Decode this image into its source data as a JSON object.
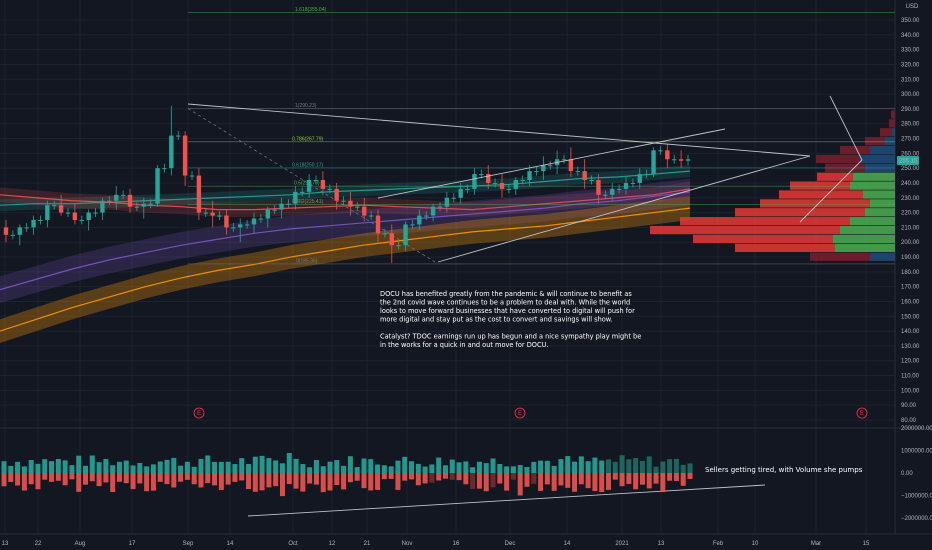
{
  "price_axis": {
    "currency": "USD",
    "ticks": [
      80,
      90,
      100,
      110,
      120,
      130,
      140,
      150,
      160,
      170,
      180,
      190,
      200,
      210,
      220,
      230,
      240,
      250,
      260,
      270,
      280,
      290,
      300,
      310,
      320,
      330,
      340,
      350
    ],
    "tick_labels": [
      "80.00",
      "90.00",
      "100.00",
      "110.00",
      "120.00",
      "130.00",
      "140.00",
      "150.00",
      "160.00",
      "170.00",
      "180.00",
      "190.00",
      "200.00",
      "210.00",
      "220.00",
      "230.00",
      "240.00",
      "250.00",
      "260.00",
      "270.00",
      "280.00",
      "290.00",
      "300.00",
      "310.00",
      "320.00",
      "330.00",
      "340.00",
      "350.00"
    ],
    "last_price": "255.15"
  },
  "volume_axis": {
    "ticks": [
      2000000,
      1000000,
      0,
      -1000000,
      -2000000
    ],
    "tick_labels": [
      "2000000.00",
      "1000000.00",
      "0.00",
      "−1000000.00",
      "−2000000.00"
    ]
  },
  "time_axis": {
    "labels": [
      "13",
      "22",
      "Aug",
      "17",
      "Sep",
      "14",
      "Oct",
      "12",
      "21",
      "Nov",
      "16",
      "Dec",
      "14",
      "2021",
      "13",
      "Feb",
      "10",
      "Mar",
      "15"
    ]
  },
  "fib_levels": [
    {
      "label": "1.618(355.04)",
      "price": 355.04,
      "color": "#4caf50"
    },
    {
      "label": "1(290.23)",
      "price": 290.23,
      "color": "#787b86"
    },
    {
      "label": "0.786(267.79)",
      "price": 267.79,
      "color": "#8bc34a"
    },
    {
      "label": "0.618(250.17)",
      "price": 250.17,
      "color": "#26a69a"
    },
    {
      "label": "0.5(237.79)",
      "price": 237.79,
      "color": "#4caf50"
    },
    {
      "label": "0.382(225.41)",
      "price": 225.41,
      "color": "#4caf50"
    },
    {
      "label": "0(185.36)",
      "price": 185.36,
      "color": "#787b86"
    }
  ],
  "earnings_badge": "E",
  "notes": {
    "main": [
      "DOCU has benefited greatly from the pandemic & will continue to benefit as",
      "the 2nd covid wave continues to be a problem to deal with. While the world",
      "looks to move forward businesses that have converted to digital will push for",
      "more digital and stay put as the cost to convert and savings will show.",
      "",
      "Catalyst? TDOC earnings run up has begun and a nice sympathy play might be",
      "in the works for a quick in and out move for DOCU."
    ],
    "volume": "Sellers getting tired, with Volume she pumps"
  },
  "colors": {
    "background": "#131722",
    "up": "#26a69a",
    "down": "#ef5350",
    "grid": "#1e222d",
    "trend": "#d1d4dc",
    "vp_up": "#4caf50",
    "vp_down": "#e53935",
    "vp_up_va": "#1e4d7a",
    "vp_down_va": "#7a1f2c"
  },
  "chart_data": {
    "type": "candlestick",
    "symbol_currency": "USD",
    "price_range": [
      75,
      360
    ],
    "volume_range": [
      -2300000,
      2300000
    ],
    "moving_average_ribbons": [
      {
        "name": "",
        "color": "#26a69a",
        "values": [
          225,
          226,
          226,
          227,
          228,
          229,
          230,
          231,
          232,
          234,
          235,
          236,
          237,
          238,
          239,
          241,
          243,
          244,
          246,
          248
        ]
      },
      {
        "name": "",
        "color": "#ef5350",
        "values": [
          232,
          230,
          228,
          227,
          225,
          224,
          222,
          222,
          223,
          224,
          225,
          224,
          223,
          222,
          224,
          226,
          228,
          230,
          232,
          236
        ]
      },
      {
        "name": "",
        "color": "#7e57c2",
        "values": [
          168,
          175,
          182,
          188,
          193,
          198,
          202,
          206,
          209,
          211,
          213,
          215,
          217,
          219,
          221,
          223,
          226,
          228,
          231,
          234
        ]
      },
      {
        "name": "",
        "color": "#ff9800",
        "values": [
          140,
          148,
          156,
          163,
          170,
          176,
          181,
          185,
          190,
          194,
          198,
          201,
          204,
          207,
          209,
          211,
          214,
          217,
          220,
          223
        ]
      }
    ],
    "candles_ohlc_approx": [
      [
        210,
        215,
        200,
        205
      ],
      [
        205,
        212,
        198,
        210
      ],
      [
        210,
        218,
        205,
        215
      ],
      [
        215,
        228,
        210,
        225
      ],
      [
        225,
        232,
        218,
        220
      ],
      [
        220,
        226,
        212,
        215
      ],
      [
        215,
        222,
        208,
        220
      ],
      [
        220,
        230,
        215,
        228
      ],
      [
        228,
        238,
        222,
        232
      ],
      [
        232,
        236,
        220,
        224
      ],
      [
        224,
        230,
        216,
        226
      ],
      [
        226,
        252,
        224,
        250
      ],
      [
        250,
        292,
        245,
        272
      ],
      [
        272,
        275,
        238,
        245
      ],
      [
        245,
        250,
        215,
        220
      ],
      [
        220,
        228,
        210,
        218
      ],
      [
        218,
        222,
        205,
        210
      ],
      [
        210,
        216,
        200,
        212
      ],
      [
        212,
        220,
        206,
        216
      ],
      [
        216,
        224,
        210,
        222
      ],
      [
        222,
        230,
        216,
        226
      ],
      [
        226,
        238,
        222,
        234
      ],
      [
        234,
        246,
        230,
        242
      ],
      [
        242,
        248,
        232,
        236
      ],
      [
        236,
        240,
        222,
        228
      ],
      [
        228,
        234,
        218,
        224
      ],
      [
        224,
        230,
        214,
        218
      ],
      [
        218,
        222,
        200,
        206
      ],
      [
        206,
        212,
        186,
        198
      ],
      [
        198,
        214,
        194,
        212
      ],
      [
        212,
        222,
        208,
        218
      ],
      [
        218,
        226,
        214,
        224
      ],
      [
        224,
        234,
        220,
        230
      ],
      [
        230,
        240,
        226,
        236
      ],
      [
        236,
        250,
        232,
        246
      ],
      [
        246,
        252,
        236,
        240
      ],
      [
        240,
        246,
        230,
        236
      ],
      [
        236,
        244,
        232,
        242
      ],
      [
        242,
        252,
        238,
        248
      ],
      [
        248,
        258,
        242,
        252
      ],
      [
        252,
        262,
        246,
        256
      ],
      [
        256,
        264,
        244,
        248
      ],
      [
        248,
        256,
        236,
        242
      ],
      [
        242,
        246,
        226,
        232
      ],
      [
        232,
        240,
        228,
        236
      ],
      [
        236,
        244,
        232,
        240
      ],
      [
        240,
        250,
        236,
        246
      ],
      [
        246,
        264,
        244,
        262
      ],
      [
        262,
        266,
        250,
        256
      ],
      [
        256,
        262,
        250,
        255
      ]
    ],
    "volume_profile_note": "horizontal volume-by-price histogram, value area highlighted"
  }
}
